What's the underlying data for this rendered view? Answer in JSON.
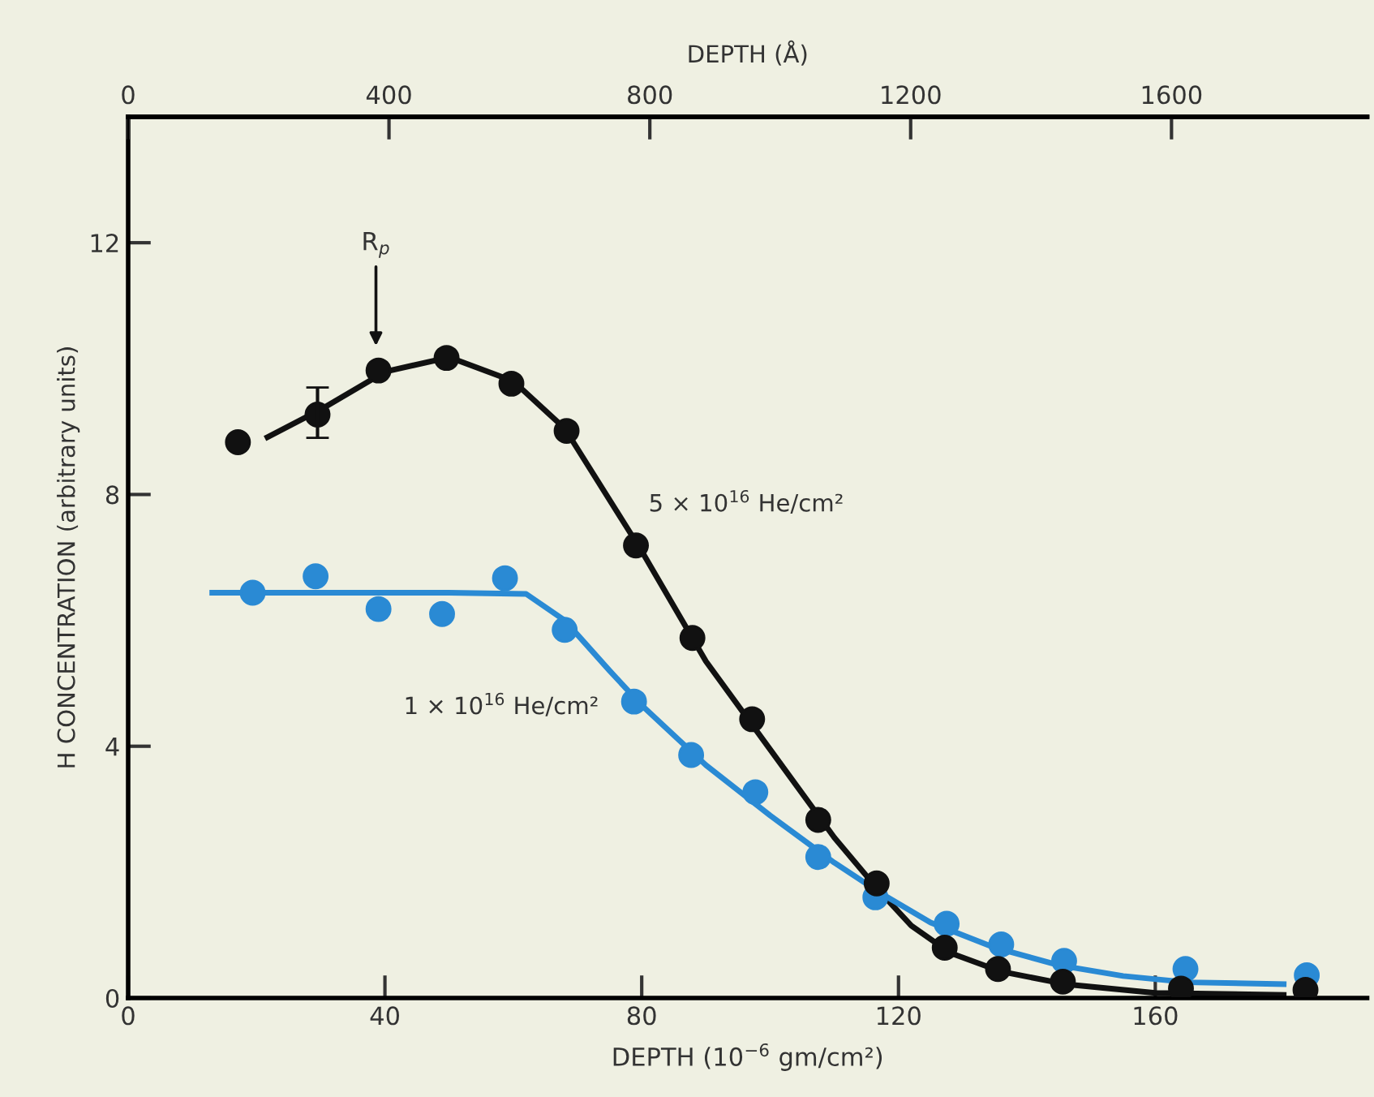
{
  "chart_data": {
    "type": "line",
    "xlabel": "DEPTH (10$^{−6}$ gm/cm²)",
    "x2label": "DEPTH (Å)",
    "ylabel": "H CONCENTRATION (arbitrary units)",
    "xlim": [
      0,
      193
    ],
    "xticks": [
      0,
      40,
      80,
      120,
      160
    ],
    "x2lim": [
      0,
      1900
    ],
    "x2ticks": [
      0,
      400,
      800,
      1200,
      1600
    ],
    "ylim": [
      0,
      14
    ],
    "yticks": [
      0,
      4,
      8,
      12
    ],
    "grid": false,
    "legend": false,
    "series": [
      {
        "type": "scatter",
        "marker": "circle",
        "color": "#2a8ad4",
        "x": [
          19.4,
          29.2,
          39,
          48.9,
          58.7,
          68,
          78.8,
          87.7,
          97.7,
          107.5,
          116.4,
          127.5,
          136,
          145.8,
          164.7,
          183.6
        ],
        "values": [
          6.44,
          6.7,
          6.18,
          6.1,
          6.67,
          5.85,
          4.71,
          3.86,
          3.27,
          2.24,
          1.6,
          1.18,
          0.85,
          0.59,
          0.46,
          0.36
        ]
      },
      {
        "type": "scatter",
        "marker": "circle",
        "color": "#111111",
        "x": [
          17.1,
          29.5,
          39,
          49.6,
          59.7,
          68.3,
          79.1,
          87.9,
          97.2,
          107.5,
          116.6,
          127.2,
          135.5,
          145.6,
          164,
          183.4
        ],
        "values": [
          8.83,
          9.27,
          9.97,
          10.17,
          9.76,
          9.01,
          7.19,
          5.72,
          4.43,
          2.83,
          1.82,
          0.8,
          0.46,
          0.26,
          0.15,
          0.13
        ],
        "errors": [
          null,
          [
            8.9,
            9.7
          ],
          null,
          null,
          null,
          null,
          null,
          null,
          null,
          null,
          null,
          null,
          null,
          null,
          null,
          null
        ]
      },
      {
        "color": "#111111",
        "x": [
          21.7,
          30,
          40,
          50,
          60,
          68,
          80,
          90,
          100,
          110,
          117,
          122,
          128,
          136,
          146,
          160,
          180
        ],
        "values": [
          8.91,
          9.35,
          9.95,
          10.18,
          9.8,
          9.05,
          7.1,
          5.35,
          3.95,
          2.55,
          1.7,
          1.15,
          0.72,
          0.42,
          0.22,
          0.08,
          0.05
        ]
      },
      {
        "color": "#2a8ad4",
        "x": [
          13.1,
          30,
          50,
          62,
          68,
          75,
          80,
          90,
          100,
          110,
          117,
          125,
          135,
          145,
          155,
          165,
          180
        ],
        "values": [
          6.44,
          6.44,
          6.44,
          6.42,
          6.0,
          5.2,
          4.65,
          3.7,
          2.9,
          2.15,
          1.68,
          1.2,
          0.8,
          0.52,
          0.35,
          0.25,
          0.22
        ]
      }
    ],
    "annotations": [
      "R$_{p}$",
      "5 × 10$^{16}$ He/cm²",
      "1 × 10$^{16}$ He/cm²"
    ]
  }
}
